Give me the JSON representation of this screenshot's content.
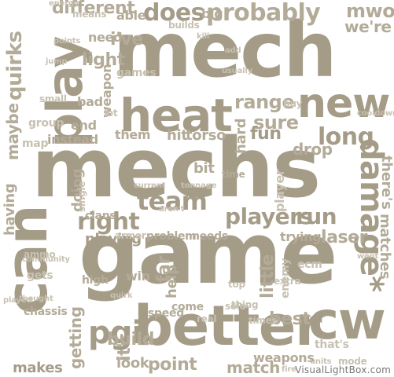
{
  "palette": {
    "dark": "#a59c88",
    "mid": "#b3ab98",
    "light": "#c8c1b1",
    "pale": "#d8d2c5"
  },
  "words": {
    "mech": "mech",
    "mechs": "mechs",
    "game": "game",
    "better": "better",
    "heat": "heat",
    "new": "new",
    "play": "play",
    "can": "can",
    "cw": "cw",
    "damage": "damage*",
    "team": "team",
    "players": "players",
    "right": "right",
    "probably": "probably",
    "does": "does",
    "range": "range",
    "sure": "sure",
    "long": "long",
    "run": "run",
    "clans": "clans",
    "laser": "laser",
    "pgi": "pgi",
    "getting": "getting",
    "makes": "makes",
    "build": "build",
    "point": "point",
    "match": "match",
    "weapons": "weapons",
    "best": "best",
    "look": "look",
    "quirks": "quirks",
    "different": "different",
    "light": "light",
    "fun": "fun",
    "mwo": "mwo",
    "were": "we're",
    "maybe": "maybe",
    "group": "group",
    "having": "having",
    "map": "map",
    "doing": "doing",
    "playing": "playing",
    "bit": "bit",
    "drop": "drop",
    "hit": "hit",
    "torso": "torso",
    "trying": "trying",
    "enemy": "enemy",
    "little": "little",
    "far": "far",
    "help": "help",
    "win": "win",
    "thats": "that's",
    "theres": "there's",
    "matches": "matches",
    "ive": "i've",
    "able": "able",
    "big": "big",
    "energy": "energy",
    "means": "means",
    "need": "need",
    "weapon": "weapon",
    "games": "games",
    "instead": "instead",
    "them": "them",
    "hard": "hard",
    "its": "it's",
    "ammo": "ammo",
    "gets": "gets",
    "high": "high",
    "real": "real",
    "speed": "speed",
    "come": "come",
    "thing": "thing",
    "armor": "armor",
    "problem": "problem",
    "needs": "needs",
    "ecm": "ecm",
    "times": "times",
    "builds": "builds",
    "player": "player",
    "chassis": "chassis",
    "thought": "thought",
    "single": "single",
    "end": "end",
    "bad": "bad",
    "small": "small",
    "solo": "solo",
    "extra": "extra",
    "top": "top",
    "current": "current",
    "tonnage": "tonnage",
    "usually": "usually",
    "units": "units",
    "cooldown": "cooldown",
    "jump": "jump",
    "points": "points",
    "aren't": "aren't",
    "add": "add",
    "lot": "lot",
    "kill": "kill",
    "played": "played",
    "community": "community",
    "quirk": "quirk",
    "mode": "mode",
    "fire": "fire",
    "time": "time",
    "buy": "buy",
    "went": "went"
  },
  "watermark": "VisualLightBox.com"
}
